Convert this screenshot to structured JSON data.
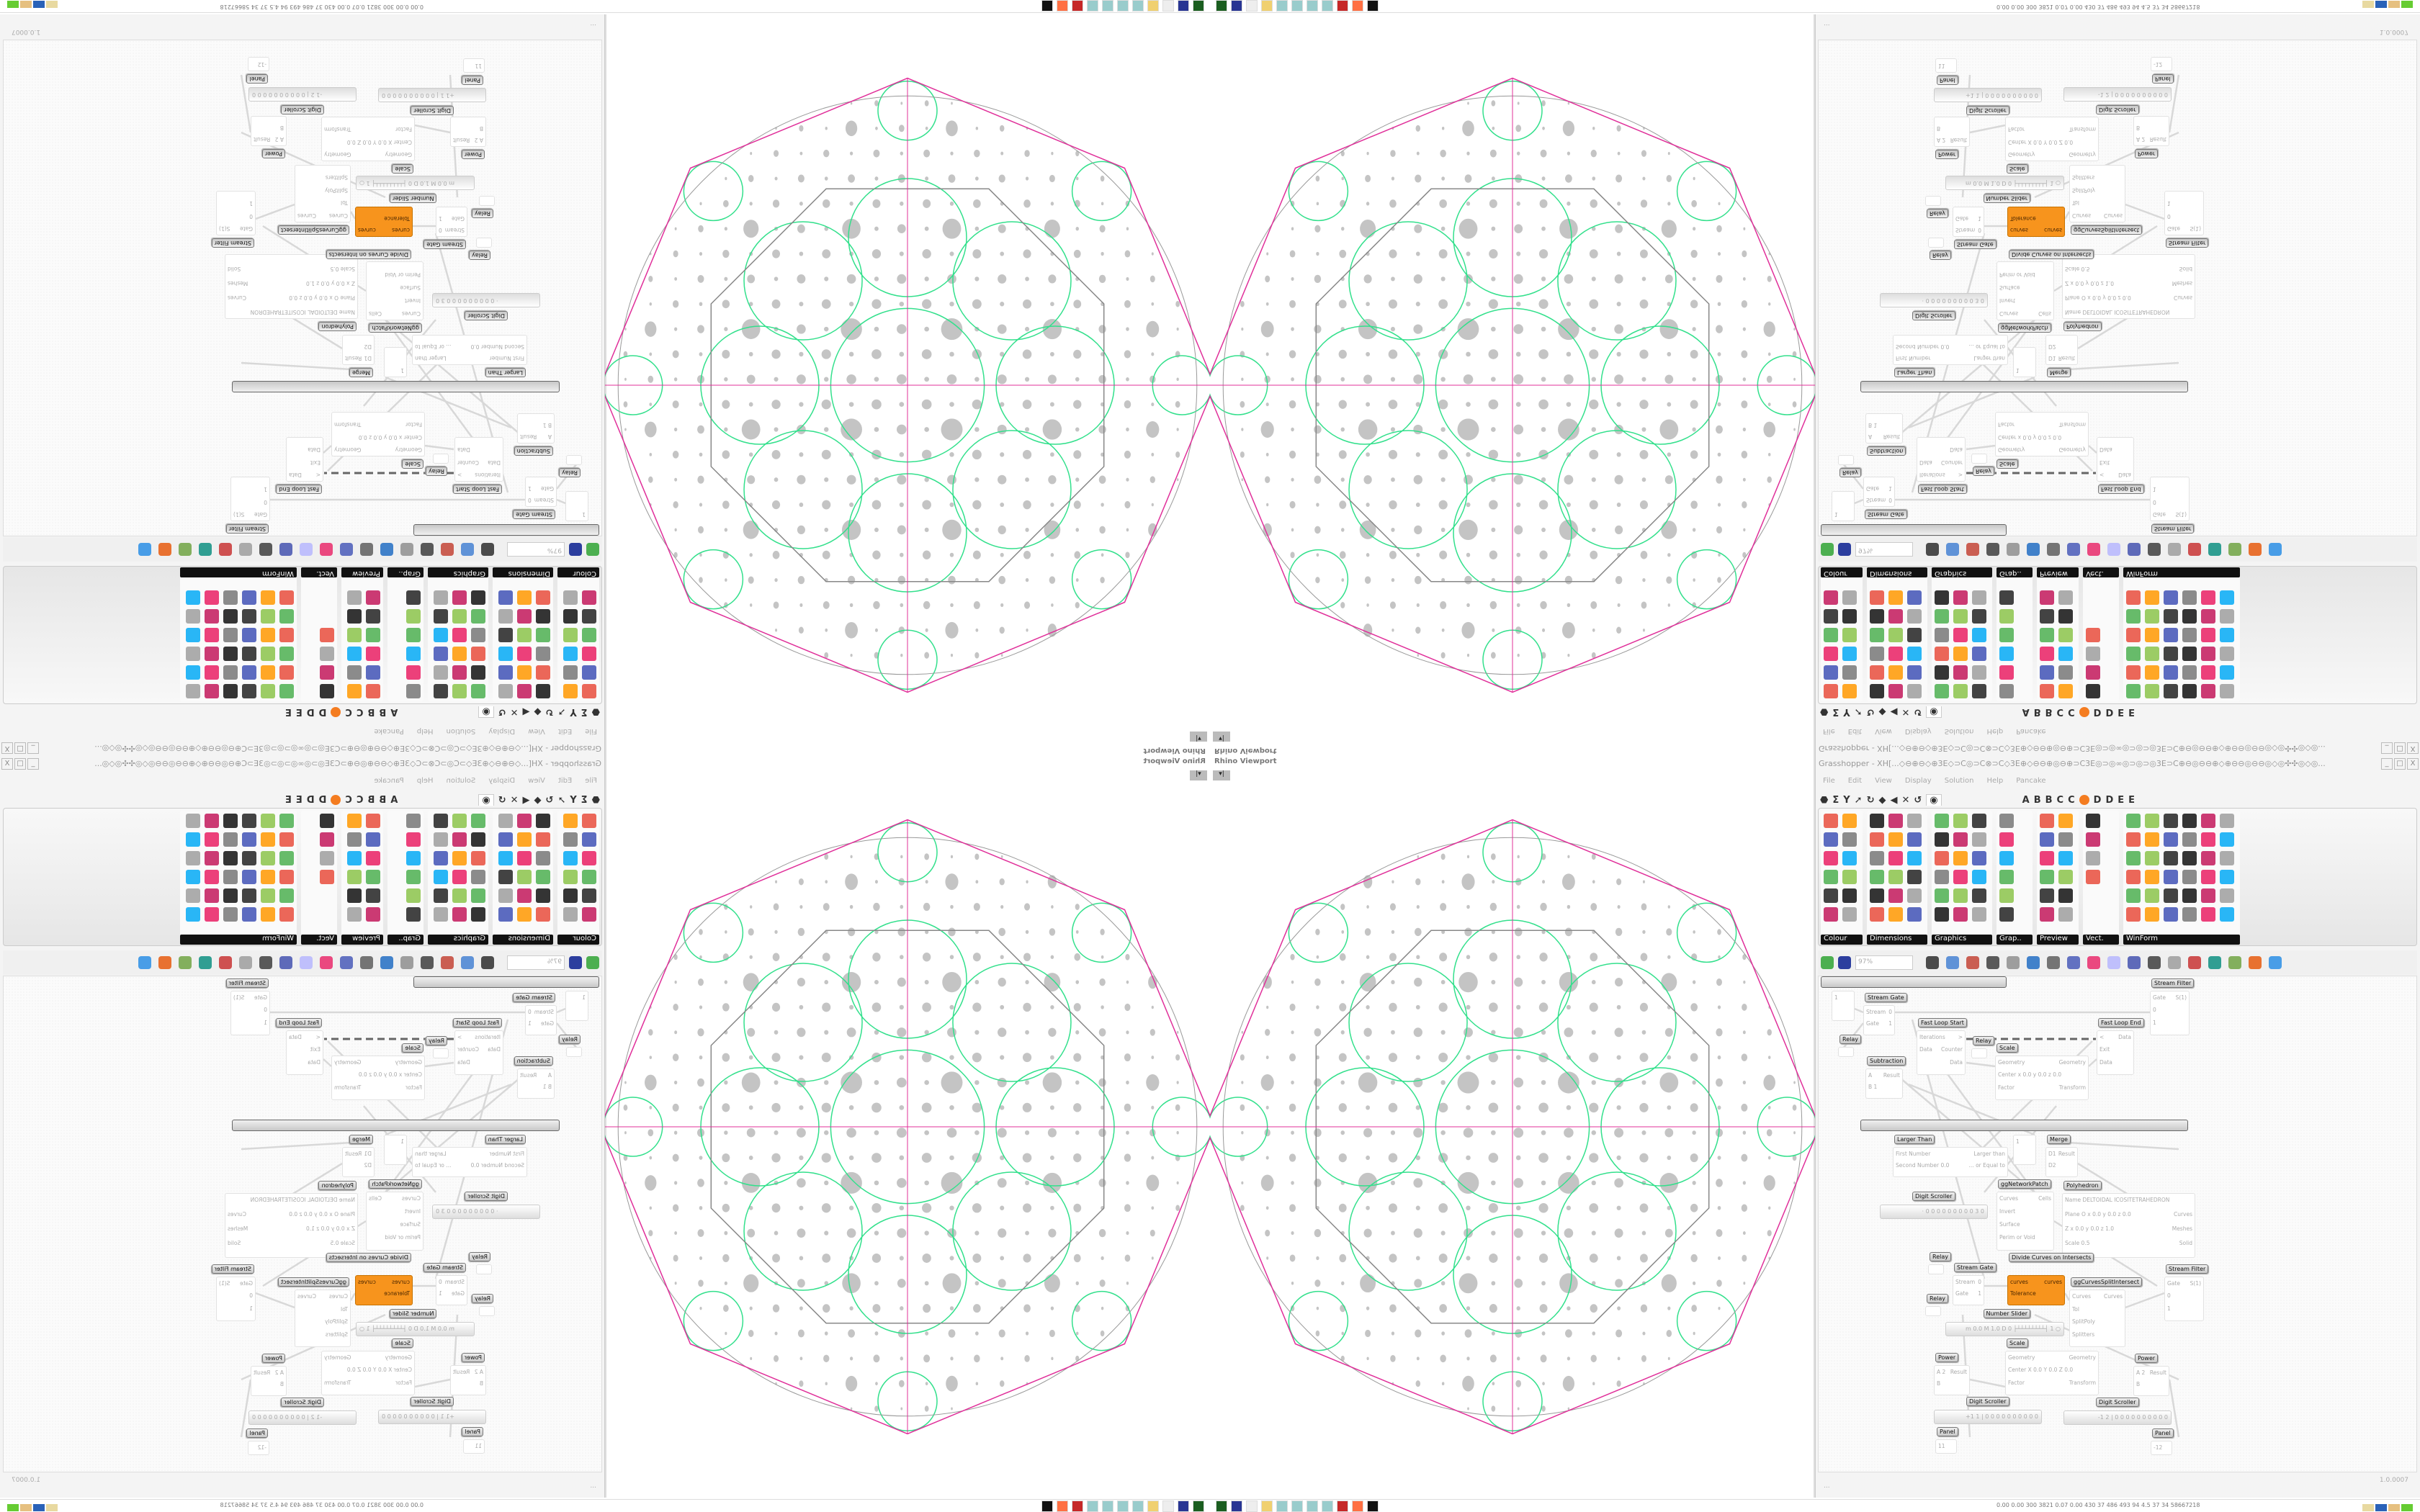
{
  "viewport": {
    "title": "Rhino Viewport",
    "menu_glyph": "▾|"
  },
  "grasshopper": {
    "title": "Grasshopper - XH[...◇⊖⊕⊖◇⊕3E◇⊃C◎⊃C⊗⊃C◇3E⊕◇⊖⊖⊕◎⊖⊕⊃C3E◎⊃◎∞◎⊃◎⊃◎3E⊃C⊕⊖◎⊖⊖⊕◇⊕⊖⊖◎⊖⊖◎◇◎✣✣◎◇◎...",
    "window_buttons": [
      "_",
      "□",
      "X"
    ],
    "menu": [
      "File",
      "Edit",
      "View",
      "Display",
      "Solution",
      "Help",
      "Pancake"
    ],
    "tabs": [
      "A",
      "B",
      "B",
      "C",
      "C",
      "D",
      "D",
      "E",
      "E"
    ],
    "ribbon_groups": [
      "Colour",
      "Dimensions",
      "Graphics",
      "Grap..",
      "Preview",
      "Vect.",
      "WinForm"
    ],
    "zoom": "97%",
    "status_left": "...",
    "version": "1.0.0007"
  },
  "nodes": [
    {
      "label": "Stream Filter",
      "inputs": [
        "Gate",
        "0",
        "1"
      ],
      "outputs": [
        "S(1)"
      ]
    },
    {
      "label": "",
      "inputs": [
        "1"
      ],
      "outputs": []
    },
    {
      "label": "Stream Gate",
      "inputs": [
        "Stream",
        "Gate"
      ],
      "outputs": [
        "0",
        "1"
      ]
    },
    {
      "label": "Relay",
      "inputs": [],
      "outputs": []
    },
    {
      "label": "Fast Loop Start",
      "inputs": [
        "Iterations",
        "Data"
      ],
      "outputs": [
        ">",
        "Counter",
        "Data"
      ]
    },
    {
      "label": "Relay",
      "inputs": [],
      "outputs": []
    },
    {
      "label": "Scale",
      "inputs": [
        "Geometry",
        "Center x 0.0 y 0.0 z 0.0",
        "Factor"
      ],
      "outputs": [
        "Geometry",
        "Transform"
      ]
    },
    {
      "label": "Fast Loop End",
      "inputs": [
        "<",
        "Exit",
        "Data"
      ],
      "outputs": [
        "Data"
      ]
    },
    {
      "label": "Subtraction",
      "inputs": [
        "A",
        "B 1"
      ],
      "outputs": [
        "Result"
      ]
    },
    {
      "label": "Larger Than",
      "inputs": [
        "First Number",
        "Second Number 0.0"
      ],
      "outputs": [
        "Larger than",
        "... or Equal to"
      ]
    },
    {
      "label": "",
      "inputs": [
        "1"
      ],
      "outputs": []
    },
    {
      "label": "Merge",
      "inputs": [
        "D1",
        "D2"
      ],
      "outputs": [
        "Result"
      ]
    },
    {
      "label": "ggNetworkPatch",
      "inputs": [
        "Curves",
        "Invert",
        "Surface",
        "Perim or Void"
      ],
      "outputs": [
        "Cells"
      ]
    },
    {
      "label": "Polyhedron",
      "inputs": [
        "Name DELTOIDAL ICOSITETRAHEDRON",
        "Plane   O x 0.0 y 0.0 z 0.0",
        "Z x 0.0 y 0.0 z 1.0",
        "Scale 0.5"
      ],
      "outputs": [
        "Curves",
        "Meshes",
        "Solid"
      ]
    },
    {
      "label": "Relay",
      "inputs": [],
      "outputs": []
    },
    {
      "label": "Relay",
      "inputs": [],
      "outputs": []
    },
    {
      "label": "Stream Gate",
      "inputs": [
        "Stream",
        "Gate"
      ],
      "outputs": [
        "0",
        "1"
      ]
    },
    {
      "label": "Divide Curves on Intersects",
      "inputs": [
        "curves",
        "Tolerance"
      ],
      "outputs": [
        "curves"
      ]
    },
    {
      "label": "ggCurvesSplitIntersect",
      "inputs": [
        "Curves",
        "Tol",
        "SplitPoly",
        "Splitters"
      ],
      "outputs": [
        "Curves"
      ]
    },
    {
      "label": "Stream Filter",
      "inputs": [
        "Gate",
        "0",
        "1"
      ],
      "outputs": [
        "S(1)"
      ]
    },
    {
      "label": "Scale",
      "inputs": [
        "Geometry",
        "Center X 0.0 Y 0.0 Z 0.0",
        "Factor"
      ],
      "outputs": [
        "Geometry",
        "Transform"
      ]
    },
    {
      "label": "Power",
      "inputs": [
        "A 2",
        "B"
      ],
      "outputs": [
        "Result"
      ]
    },
    {
      "label": "Power",
      "inputs": [
        "A 2",
        "B"
      ],
      "outputs": [
        "Result"
      ]
    },
    {
      "label": "Panel",
      "inputs": [
        "11"
      ],
      "outputs": []
    },
    {
      "label": "Panel",
      "inputs": [
        "-12"
      ],
      "outputs": []
    }
  ],
  "sliders": [
    {
      "label": "Digit Scroller",
      "value": "· 0 0 0 0 0 0 0 0 0 3 0"
    },
    {
      "label": "Number Slider",
      "value": "m 0.0  M 1.0  D 0   ├┴┴┴┴┴┴┴┴┤ 1 ○"
    },
    {
      "label": "Digit Scroller",
      "value": "+1 1 | 0 0 0 0 0 0 0 0 0 0"
    },
    {
      "label": "Digit Scroller",
      "value": "-1 2 | 0 0 0 0 0 0 0 0 0 0"
    }
  ],
  "taskbar": {
    "perf": "0.00 0.00 300 3821 0.07 0.00 430  37  486  493  94  4.5  37  34  58667218"
  },
  "colors": {
    "orange": "#f7941d",
    "sphere_dots": "#c4c4c4",
    "green_curves": "#33e08c",
    "magenta": "#e0309a"
  }
}
